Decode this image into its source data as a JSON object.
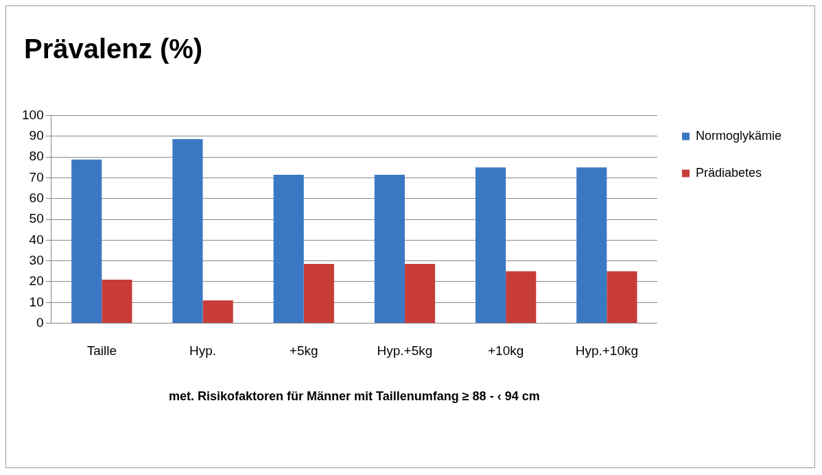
{
  "chart_data": {
    "type": "bar",
    "title": "Prävalenz (%)",
    "xlabel": "met. Risikofaktoren für Männer mit Taillenumfang ≥ 88 - ‹ 94 cm",
    "categories": [
      "Taille",
      "Hyp.",
      "+5kg",
      "Hyp.+5kg",
      "+10kg",
      "Hyp.+10kg"
    ],
    "series": [
      {
        "name": "Normoglykämie",
        "color": "#3a78c4",
        "values": [
          78.8,
          88.6,
          71.4,
          71.4,
          75,
          75
        ]
      },
      {
        "name": "Prädiabetes",
        "color": "#c83c38",
        "values": [
          21,
          11,
          28.6,
          28.6,
          25,
          25
        ]
      }
    ],
    "ylim": [
      0,
      100
    ],
    "yticks": [
      0,
      10,
      20,
      30,
      40,
      50,
      60,
      70,
      80,
      90,
      100
    ],
    "grid": "y",
    "legend": "right"
  }
}
